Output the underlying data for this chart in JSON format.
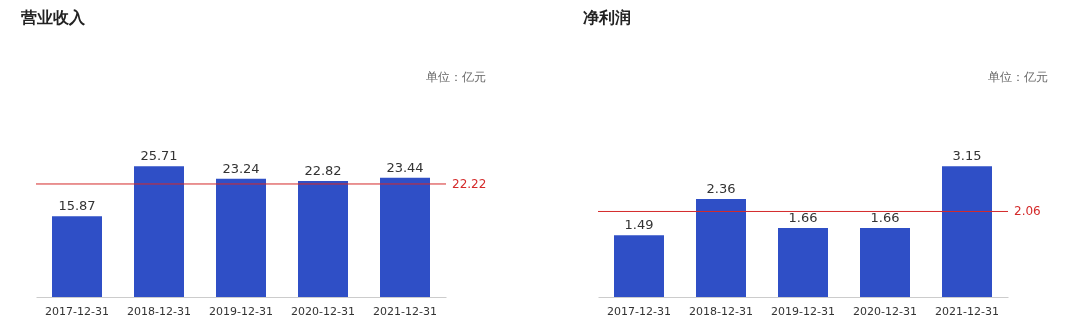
{
  "chart_data": [
    {
      "type": "bar",
      "title": "营业收入",
      "annotations": [
        "单位：亿元"
      ],
      "categories": [
        "2017-12-31",
        "2018-12-31",
        "2019-12-31",
        "2020-12-31",
        "2021-12-31"
      ],
      "values": [
        15.87,
        25.71,
        23.24,
        22.82,
        23.44
      ],
      "color": "#2f4fc6",
      "data_labels": true,
      "tick_labels": "x",
      "ref_lines": [
        {
          "axis": "y",
          "value": 22.22,
          "label": "22.22",
          "color": "#d42a2a"
        }
      ]
    },
    {
      "type": "bar",
      "title": "净利润",
      "annotations": [
        "单位：亿元"
      ],
      "categories": [
        "2017-12-31",
        "2018-12-31",
        "2019-12-31",
        "2020-12-31",
        "2021-12-31"
      ],
      "values": [
        1.49,
        2.36,
        1.66,
        1.66,
        3.15
      ],
      "color": "#2f4fc6",
      "data_labels": true,
      "tick_labels": "x",
      "ref_lines": [
        {
          "axis": "y",
          "value": 2.06,
          "label": "2.06",
          "color": "#d42a2a"
        }
      ]
    }
  ]
}
